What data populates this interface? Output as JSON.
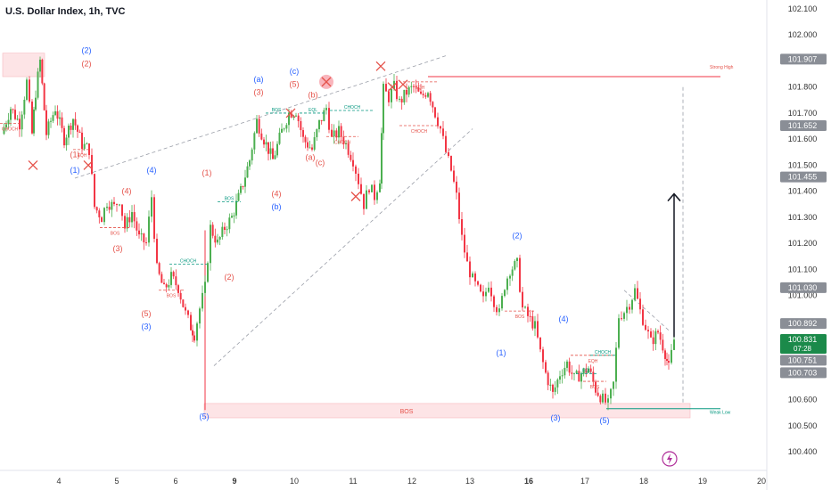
{
  "header": {
    "title": "U.S. Dollar Index, 1h, TVC"
  },
  "colors": {
    "up": "#4caf50",
    "down": "#f23645",
    "red_label": "#e5534b",
    "blue_label": "#2962ff",
    "green_label": "#089981",
    "zone_fill": "#fde4e6",
    "axis_text": "#333333",
    "price_box_gray": "#8a8e96",
    "price_box_green": "#1b8a4a",
    "arrow": "#131722"
  },
  "chart_data": {
    "type": "candlestick",
    "title": "U.S. Dollar Index, 1h, TVC",
    "ylim": [
      100.4,
      102.1
    ],
    "x_ticks": [
      "4",
      "5",
      "6",
      "9",
      "10",
      "11",
      "12",
      "13",
      "16",
      "17",
      "18",
      "19",
      "20"
    ],
    "x_ticks_bold": [
      "9",
      "16"
    ],
    "y_ticks": [
      "102.100",
      "102.000",
      "101.907",
      "101.800",
      "101.700",
      "101.652",
      "101.600",
      "101.500",
      "101.455",
      "101.400",
      "101.300",
      "101.200",
      "101.100",
      "101.030",
      "101.000",
      "100.892",
      "100.831",
      "100.751",
      "100.703",
      "100.600",
      "100.500",
      "100.400"
    ],
    "highlighted_prices": [
      {
        "price": 101.907,
        "label": "101.907",
        "style": "gray"
      },
      {
        "price": 101.652,
        "label": "101.652",
        "style": "gray"
      },
      {
        "price": 101.455,
        "label": "101.455",
        "style": "gray"
      },
      {
        "price": 101.03,
        "label": "101.030",
        "style": "gray"
      },
      {
        "price": 100.892,
        "label": "100.892",
        "style": "gray"
      },
      {
        "price": 100.831,
        "label": "100.831",
        "sub": "07:28",
        "style": "green"
      },
      {
        "price": 100.751,
        "label": "100.751",
        "style": "gray"
      },
      {
        "price": 100.703,
        "label": "100.703",
        "style": "gray"
      }
    ],
    "zones": [
      {
        "t0": 3,
        "t1": 50,
        "p0": 101.84,
        "p1": 101.93
      },
      {
        "t0": 229,
        "t1": 774,
        "p0": 100.53,
        "p1": 100.585
      }
    ],
    "key_lines": [
      {
        "price": 101.84,
        "t0": 480,
        "t1": 808,
        "label": "Strong High"
      },
      {
        "price": 100.565,
        "t0": 680,
        "t1": 808,
        "label": "Weak Low"
      }
    ],
    "price_path": [
      [
        2,
        101.62
      ],
      [
        12,
        101.72
      ],
      [
        22,
        101.66
      ],
      [
        30,
        101.82
      ],
      [
        36,
        101.62
      ],
      [
        40,
        101.78
      ],
      [
        45,
        101.9
      ],
      [
        52,
        101.62
      ],
      [
        62,
        101.72
      ],
      [
        72,
        101.6
      ],
      [
        82,
        101.68
      ],
      [
        92,
        101.58
      ],
      [
        100,
        101.56
      ],
      [
        106,
        101.34
      ],
      [
        114,
        101.3
      ],
      [
        120,
        101.36
      ],
      [
        128,
        101.34
      ],
      [
        134,
        101.37
      ],
      [
        140,
        101.26
      ],
      [
        148,
        101.32
      ],
      [
        156,
        101.22
      ],
      [
        164,
        101.2
      ],
      [
        170,
        101.38
      ],
      [
        176,
        101.1
      ],
      [
        184,
        101.02
      ],
      [
        192,
        101.07
      ],
      [
        200,
        101.03
      ],
      [
        208,
        100.93
      ],
      [
        214,
        100.88
      ],
      [
        218,
        100.85
      ],
      [
        224,
        100.95
      ],
      [
        230,
        101.03
      ],
      [
        236,
        101.26
      ],
      [
        244,
        101.2
      ],
      [
        252,
        101.26
      ],
      [
        260,
        101.3
      ],
      [
        270,
        101.4
      ],
      [
        280,
        101.52
      ],
      [
        288,
        101.67
      ],
      [
        296,
        101.6
      ],
      [
        306,
        101.52
      ],
      [
        316,
        101.63
      ],
      [
        324,
        101.7
      ],
      [
        332,
        101.71
      ],
      [
        340,
        101.6
      ],
      [
        350,
        101.56
      ],
      [
        358,
        101.66
      ],
      [
        366,
        101.72
      ],
      [
        372,
        101.6
      ],
      [
        380,
        101.63
      ],
      [
        388,
        101.58
      ],
      [
        396,
        101.52
      ],
      [
        402,
        101.44
      ],
      [
        408,
        101.35
      ],
      [
        414,
        101.42
      ],
      [
        420,
        101.38
      ],
      [
        426,
        101.45
      ],
      [
        430,
        101.79
      ],
      [
        436,
        101.76
      ],
      [
        442,
        101.8
      ],
      [
        448,
        101.74
      ],
      [
        456,
        101.78
      ],
      [
        464,
        101.8
      ],
      [
        472,
        101.76
      ],
      [
        480,
        101.79
      ],
      [
        488,
        101.7
      ],
      [
        494,
        101.64
      ],
      [
        500,
        101.55
      ],
      [
        506,
        101.48
      ],
      [
        512,
        101.38
      ],
      [
        518,
        101.22
      ],
      [
        524,
        101.12
      ],
      [
        530,
        101.06
      ],
      [
        536,
        101.02
      ],
      [
        542,
        100.98
      ],
      [
        548,
        101.05
      ],
      [
        554,
        100.98
      ],
      [
        560,
        100.93
      ],
      [
        566,
        101.04
      ],
      [
        572,
        101.1
      ],
      [
        580,
        101.12
      ],
      [
        586,
        100.95
      ],
      [
        592,
        100.92
      ],
      [
        600,
        100.88
      ],
      [
        606,
        100.78
      ],
      [
        612,
        100.7
      ],
      [
        620,
        100.62
      ],
      [
        628,
        100.7
      ],
      [
        636,
        100.74
      ],
      [
        644,
        100.68
      ],
      [
        652,
        100.7
      ],
      [
        660,
        100.72
      ],
      [
        668,
        100.64
      ],
      [
        676,
        100.6
      ],
      [
        682,
        100.58
      ],
      [
        688,
        100.66
      ],
      [
        694,
        100.92
      ],
      [
        700,
        100.94
      ],
      [
        706,
        100.97
      ],
      [
        712,
        101.02
      ],
      [
        718,
        100.94
      ],
      [
        724,
        100.88
      ],
      [
        730,
        100.82
      ],
      [
        738,
        100.86
      ],
      [
        746,
        100.78
      ],
      [
        750,
        100.72
      ],
      [
        756,
        100.83
      ]
    ],
    "dashed_lines": [
      {
        "t0": 84,
        "p0": 101.45,
        "t1": 500,
        "p1": 101.92
      },
      {
        "t0": 240,
        "p0": 100.73,
        "t1": 530,
        "p1": 101.64
      },
      {
        "t0": 700,
        "p0": 101.02,
        "t1": 752,
        "p1": 100.86
      },
      {
        "t0": 766,
        "p0": 101.8,
        "t1": 766,
        "p1": 100.58
      }
    ],
    "arrow": {
      "t": 756,
      "p0": 100.84,
      "p1": 101.39
    },
    "structure_marks": [
      {
        "t0": 0,
        "t1": 22,
        "p": 101.66,
        "label": "CHOCH",
        "color": "red"
      },
      {
        "t0": 82,
        "t1": 102,
        "p": 101.56,
        "label": "EQH",
        "color": "red"
      },
      {
        "t0": 112,
        "t1": 146,
        "p": 101.26,
        "label": "BOS",
        "color": "red"
      },
      {
        "t0": 178,
        "t1": 206,
        "p": 101.02,
        "label": "BOS",
        "color": "red"
      },
      {
        "t0": 190,
        "t1": 232,
        "p": 101.12,
        "label": "CHOCH",
        "color": "green"
      },
      {
        "t0": 244,
        "t1": 270,
        "p": 101.36,
        "label": "BOS",
        "color": "green"
      },
      {
        "t0": 298,
        "t1": 322,
        "p": 101.7,
        "label": "BOS",
        "color": "green"
      },
      {
        "t0": 336,
        "t1": 366,
        "p": 101.7,
        "label": "EQL",
        "color": "green"
      },
      {
        "t0": 370,
        "t1": 420,
        "p": 101.71,
        "label": "CHOCH",
        "color": "green"
      },
      {
        "t0": 366,
        "t1": 402,
        "p": 101.61,
        "label": "CHOCH",
        "color": "red"
      },
      {
        "t0": 448,
        "t1": 492,
        "p": 101.652,
        "label": "CHOCH",
        "color": "red"
      },
      {
        "t0": 452,
        "t1": 490,
        "p": 101.82,
        "label": "EQH",
        "color": "red"
      },
      {
        "t0": 566,
        "t1": 600,
        "p": 100.94,
        "label": "BOS",
        "color": "red"
      },
      {
        "t0": 640,
        "t1": 690,
        "p": 100.77,
        "label": "EQH",
        "color": "red"
      },
      {
        "t0": 662,
        "t1": 690,
        "p": 100.77,
        "label": "CHOCH",
        "color": "green"
      },
      {
        "t0": 646,
        "t1": 670,
        "p": 100.7,
        "label": "EQL",
        "color": "green"
      },
      {
        "t0": 654,
        "t1": 680,
        "p": 100.67,
        "label": "BOS",
        "color": "red"
      }
    ],
    "annotations": [
      {
        "t": 97,
        "p": 101.93,
        "text": "(2)",
        "color": "blue"
      },
      {
        "t": 97,
        "p": 101.88,
        "text": "(2)",
        "color": "red"
      },
      {
        "t": 84,
        "p": 101.53,
        "text": "(1)",
        "color": "red"
      },
      {
        "t": 84,
        "p": 101.47,
        "text": "(1)",
        "color": "blue"
      },
      {
        "t": 142,
        "p": 101.39,
        "text": "(4)",
        "color": "red"
      },
      {
        "t": 170,
        "p": 101.47,
        "text": "(4)",
        "color": "blue"
      },
      {
        "t": 132,
        "p": 101.17,
        "text": "(3)",
        "color": "red"
      },
      {
        "t": 164,
        "p": 100.92,
        "text": "(5)",
        "color": "red"
      },
      {
        "t": 164,
        "p": 100.87,
        "text": "(3)",
        "color": "blue"
      },
      {
        "t": 232,
        "p": 101.46,
        "text": "(1)",
        "color": "red"
      },
      {
        "t": 257,
        "p": 101.06,
        "text": "(2)",
        "color": "red"
      },
      {
        "t": 229,
        "p": 100.525,
        "text": "(5)",
        "color": "blue"
      },
      {
        "t": 290,
        "p": 101.82,
        "text": "(a)",
        "color": "blue"
      },
      {
        "t": 290,
        "p": 101.77,
        "text": "(3)",
        "color": "red"
      },
      {
        "t": 310,
        "p": 101.38,
        "text": "(4)",
        "color": "red"
      },
      {
        "t": 310,
        "p": 101.33,
        "text": "(b)",
        "color": "blue"
      },
      {
        "t": 330,
        "p": 101.85,
        "text": "(c)",
        "color": "blue"
      },
      {
        "t": 330,
        "p": 101.8,
        "text": "(5)",
        "color": "red"
      },
      {
        "t": 351,
        "p": 101.76,
        "text": "(b)",
        "color": "red"
      },
      {
        "t": 348,
        "p": 101.52,
        "text": "(a)",
        "color": "red"
      },
      {
        "t": 359,
        "p": 101.5,
        "text": "(c)",
        "color": "red"
      },
      {
        "t": 580,
        "p": 101.22,
        "text": "(2)",
        "color": "blue"
      },
      {
        "t": 632,
        "p": 100.9,
        "text": "(4)",
        "color": "blue"
      },
      {
        "t": 562,
        "p": 100.77,
        "text": "(1)",
        "color": "blue"
      },
      {
        "t": 623,
        "p": 100.52,
        "text": "(3)",
        "color": "blue"
      },
      {
        "t": 678,
        "p": 100.51,
        "text": "(5)",
        "color": "blue"
      }
    ],
    "crosses": [
      {
        "t": 37,
        "p": 101.5
      },
      {
        "t": 99,
        "p": 101.5
      },
      {
        "t": 326,
        "p": 101.7
      },
      {
        "t": 427,
        "p": 101.88
      },
      {
        "t": 440,
        "p": 101.8
      },
      {
        "t": 452,
        "p": 101.81
      },
      {
        "t": 399,
        "p": 101.38
      }
    ],
    "highlight_circle": {
      "t": 366,
      "p": 101.82
    },
    "zone_labels": [
      {
        "t": 456,
        "p": 100.557,
        "text": "BOS"
      }
    ],
    "line_labels": [
      {
        "t": 796,
        "p": 101.87,
        "text": "Strong High"
      },
      {
        "t": 796,
        "p": 100.545,
        "text": "Weak Low"
      }
    ]
  }
}
